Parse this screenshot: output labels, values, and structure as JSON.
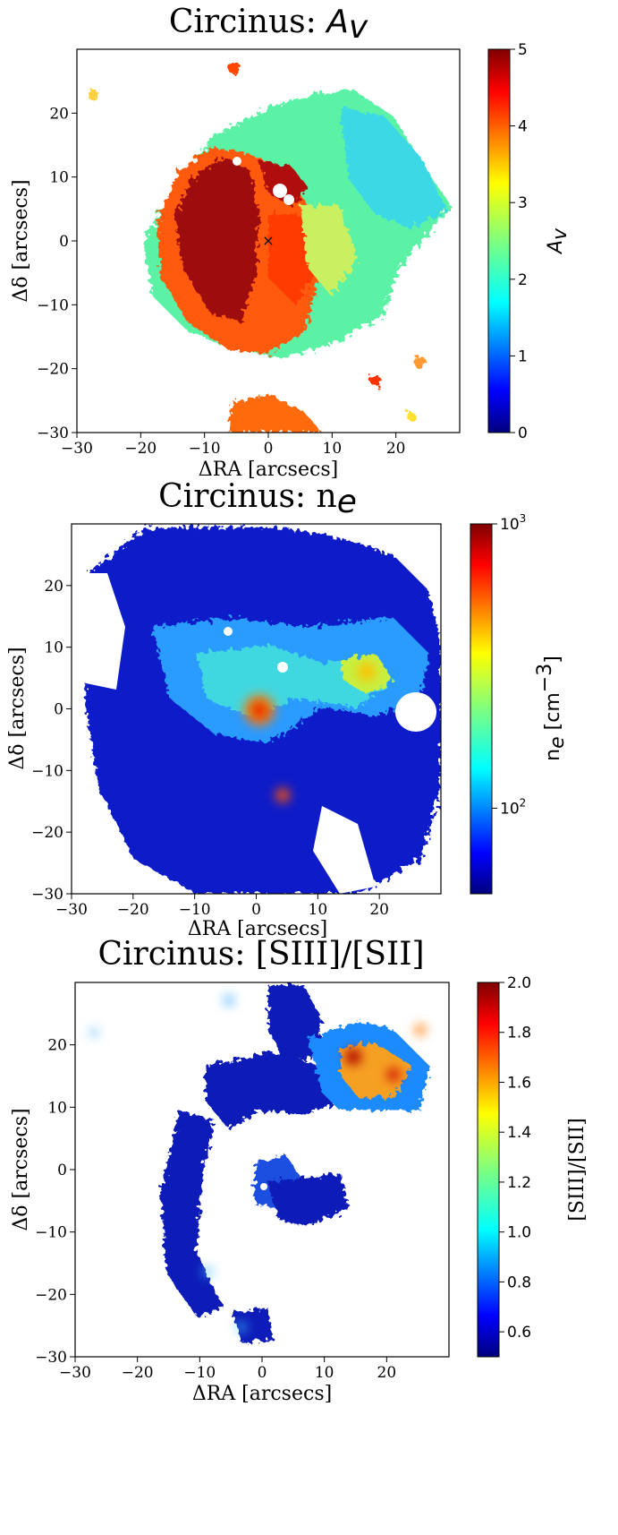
{
  "chart_data": [
    {
      "type": "heatmap",
      "title_prefix": "Circinus: ",
      "title_symbol": "A",
      "title_symbol_sub": "v",
      "xlabel": "ΔRA [arcsecs]",
      "ylabel": "Δδ [arcsecs]",
      "xlim": [
        -30,
        30
      ],
      "ylim": [
        -30,
        30
      ],
      "xticks": [
        -30,
        -20,
        -10,
        0,
        10,
        20
      ],
      "yticks": [
        -30,
        -20,
        -10,
        0,
        10,
        20
      ],
      "colorbar": {
        "label_symbol": "A",
        "label_sub": "v",
        "scale": "linear",
        "range": [
          0,
          5
        ],
        "ticks": [
          "0",
          "1",
          "2",
          "3",
          "4",
          "5"
        ],
        "colormap": "jet"
      },
      "marker": "×",
      "grid": false
    },
    {
      "type": "heatmap",
      "title_prefix": "Circinus: n",
      "title_sub": "e",
      "xlabel": "ΔRA [arcsecs]",
      "ylabel": "Δδ [arcsecs]",
      "xlim": [
        -30,
        30
      ],
      "ylim": [
        -30,
        30
      ],
      "xticks": [
        -30,
        -20,
        -10,
        0,
        10,
        20
      ],
      "yticks": [
        -30,
        -20,
        -10,
        0,
        10,
        20
      ],
      "colorbar": {
        "label_prefix": "n",
        "label_sub": "e",
        "label_suffix": " [cm",
        "label_sup": "−3",
        "label_end": "]",
        "scale": "log",
        "range": [
          50,
          1000
        ],
        "ticks": [
          "10",
          "10"
        ],
        "tick_exps": [
          "2",
          "3"
        ],
        "colormap": "jet"
      },
      "grid": false
    },
    {
      "type": "heatmap",
      "title": "Circinus: [SIII]/[SII]",
      "xlabel": "ΔRA [arcsecs]",
      "ylabel": "Δδ [arcsecs]",
      "xlim": [
        -30,
        30
      ],
      "ylim": [
        -30,
        30
      ],
      "xticks": [
        -30,
        -20,
        -10,
        0,
        10,
        20
      ],
      "yticks": [
        -30,
        -20,
        -10,
        0,
        10,
        20
      ],
      "colorbar": {
        "label": "[SIII]/[SII]",
        "scale": "linear",
        "range": [
          0.5,
          2.0
        ],
        "ticks": [
          "0.6",
          "0.8",
          "1.0",
          "1.2",
          "1.4",
          "1.6",
          "1.8",
          "2.0"
        ],
        "colormap": "jet"
      },
      "grid": false
    }
  ],
  "colors": {
    "jet": [
      "#00007f",
      "#0000ff",
      "#007fff",
      "#00ffff",
      "#7fff7f",
      "#ffff00",
      "#ff7f00",
      "#ff0000",
      "#7f0000"
    ]
  }
}
